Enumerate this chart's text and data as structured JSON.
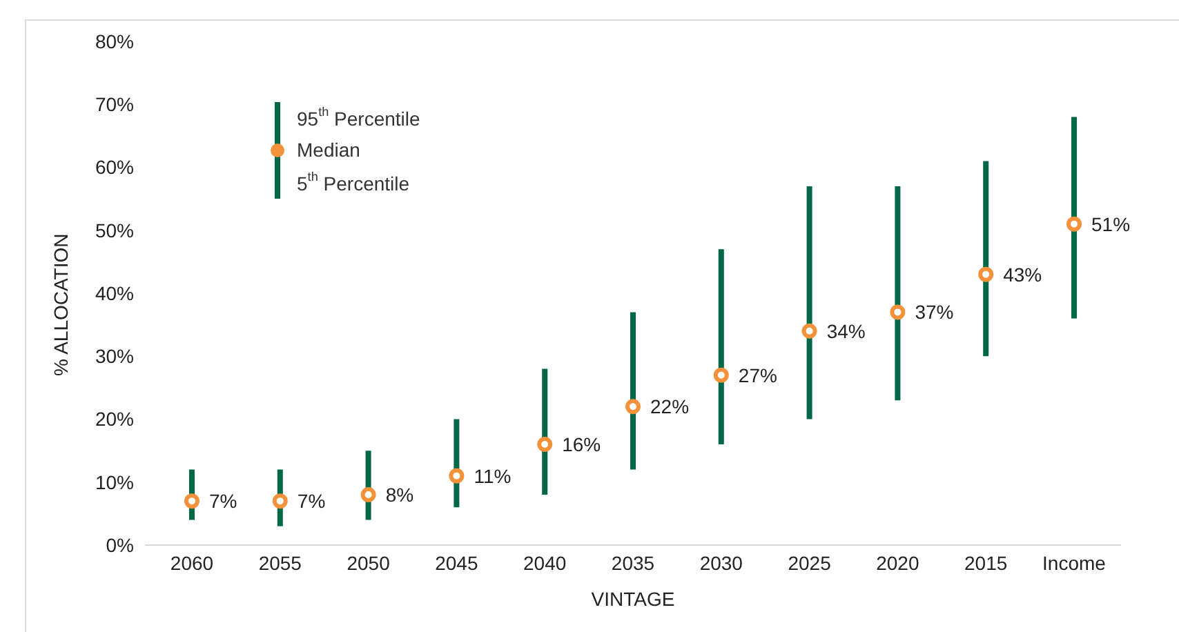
{
  "chart_data": {
    "type": "scatter",
    "xlabel": "VINTAGE",
    "ylabel": "% ALLOCATION",
    "categories": [
      "2060",
      "2055",
      "2050",
      "2045",
      "2040",
      "2035",
      "2030",
      "2025",
      "2020",
      "2015",
      "Income"
    ],
    "series": [
      {
        "name": "Median",
        "color": "#f4923c",
        "values": [
          7,
          7,
          8,
          11,
          16,
          22,
          27,
          34,
          37,
          43,
          51
        ],
        "errors": [
          [
            4,
            12
          ],
          [
            3,
            12
          ],
          [
            4,
            15
          ],
          [
            6,
            20
          ],
          [
            8,
            28
          ],
          [
            12,
            37
          ],
          [
            16,
            47
          ],
          [
            20,
            57
          ],
          [
            23,
            57
          ],
          [
            30,
            61
          ],
          [
            36,
            68
          ]
        ],
        "value_labels": [
          "7%",
          "7%",
          "8%",
          "11%",
          "16%",
          "22%",
          "27%",
          "34%",
          "37%",
          "43%",
          "51%"
        ]
      }
    ],
    "annotations": [
      "95$^{th}$ Percentile",
      "5$^{th}$ Percentile"
    ],
    "ylim": [
      0,
      80
    ],
    "yticks": [
      {
        "value": 0,
        "label": "0%"
      },
      {
        "value": 10,
        "label": "10%"
      },
      {
        "value": 20,
        "label": "20%"
      },
      {
        "value": 30,
        "label": "30%"
      },
      {
        "value": 40,
        "label": "40%"
      },
      {
        "value": 50,
        "label": "50%"
      },
      {
        "value": 60,
        "label": "60%"
      },
      {
        "value": 70,
        "label": "70%"
      },
      {
        "value": 80,
        "label": "80%"
      }
    ],
    "grid": false,
    "legend": "top left",
    "marker": "circle"
  }
}
